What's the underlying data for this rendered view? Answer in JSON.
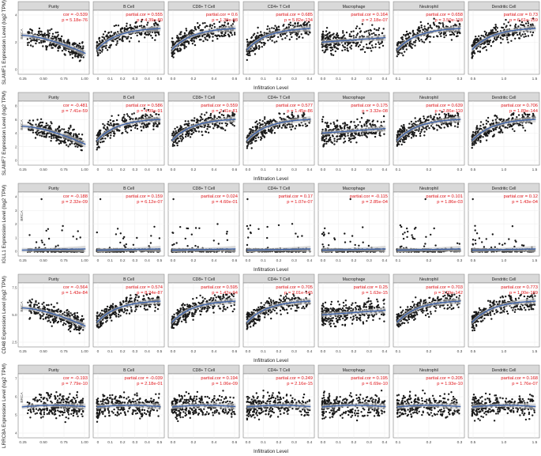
{
  "chart_data": {
    "type": "scatter",
    "x_axis_label": "Infiltration Level",
    "facet_label": "BRCA",
    "cell_types": [
      "Purity",
      "B Cell",
      "CD8+ T Cell",
      "CD4+ T Cell",
      "Macrophage",
      "Neutrophil",
      "Dendritic Cell"
    ],
    "colors": {
      "points": "#1a1a1a",
      "fit": "#3f63a8",
      "band": "#c4c4c4",
      "stat_text": "#e0161b",
      "strip": "#d9d9d9",
      "grid": "#ececec"
    },
    "rows": [
      {
        "gene": "SLAMF1",
        "ylabel": "SLAMF1 Expression Level (log2 TPM)",
        "y_ticks": [
          "0",
          "2",
          "4"
        ],
        "panels": [
          {
            "cell": "Purity",
            "cor_label": "cor = -0.539",
            "p_label": "p = 5.18e-76",
            "x_ticks": [
              "0.25",
              "0.50",
              "0.75",
              "1.00"
            ],
            "trend": "down"
          },
          {
            "cell": "B Cell",
            "cor_label": "partial.cor = 0.555",
            "p_label": "p = 4.39e-80",
            "x_ticks": [
              "0",
              "0.1",
              "0.2",
              "0.3",
              "0.4",
              "0.5"
            ],
            "trend": "up"
          },
          {
            "cell": "CD8+ T Cell",
            "cor_label": "partial.cor = 0.6",
            "p_label": "p = 1.39e-98",
            "x_ticks": [
              "0.0",
              "0.2",
              "0.4",
              "0.6"
            ],
            "trend": "up"
          },
          {
            "cell": "CD4+ T Cell",
            "cor_label": "partial.cor = 0.685",
            "p_label": "p = 5.82e-134",
            "x_ticks": [
              "0.0",
              "0.1",
              "0.2",
              "0.3",
              "0.4"
            ],
            "trend": "up"
          },
          {
            "cell": "Macrophage",
            "cor_label": "partial.cor = 0.164",
            "p_label": "p = 2.18e-07",
            "x_ticks": [
              "0.0",
              "0.1",
              "0.2",
              "0.3",
              "0.4"
            ],
            "trend": "flat-up"
          },
          {
            "cell": "Neutrophil",
            "cor_label": "partial.cor = 0.658",
            "p_label": "p = 3.50e-118",
            "x_ticks": [
              "0.1",
              "0.2",
              "0.3"
            ],
            "trend": "up"
          },
          {
            "cell": "Dendritic Cell",
            "cor_label": "partial.cor = 0.73",
            "p_label": "p = 6.61e-159",
            "x_ticks": [
              "0.5",
              "1.0",
              "1.5"
            ],
            "trend": "up"
          }
        ]
      },
      {
        "gene": "SLAMF7",
        "ylabel": "SLAMF7 Expression Level (log2 TPM)",
        "y_ticks": [
          "0",
          "2",
          "4",
          "6",
          "8"
        ],
        "panels": [
          {
            "cell": "Purity",
            "cor_label": "cor = -0.481",
            "p_label": "p = 7.41e-59",
            "x_ticks": [
              "0.25",
              "0.50",
              "0.75",
              "1.00"
            ],
            "trend": "down"
          },
          {
            "cell": "B Cell",
            "cor_label": "partial.cor = 0.586",
            "p_label": "p = 4.09e-91",
            "x_ticks": [
              "0",
              "0.1",
              "0.2",
              "0.3",
              "0.4",
              "0.5"
            ],
            "trend": "up"
          },
          {
            "cell": "CD8+ T Cell",
            "cor_label": "partial.cor = 0.559",
            "p_label": "p = 2.41e-81",
            "x_ticks": [
              "0.0",
              "0.2",
              "0.4",
              "0.6"
            ],
            "trend": "up"
          },
          {
            "cell": "CD4+ T Cell",
            "cor_label": "partial.cor = 0.577",
            "p_label": "p = 1.45e-86",
            "x_ticks": [
              "0.0",
              "0.1",
              "0.2",
              "0.3",
              "0.4"
            ],
            "trend": "up"
          },
          {
            "cell": "Macrophage",
            "cor_label": "partial.cor = 0.175",
            "p_label": "p = 3.32e-08",
            "x_ticks": [
              "0.0",
              "0.1",
              "0.2",
              "0.3",
              "0.4"
            ],
            "trend": "flat-up"
          },
          {
            "cell": "Neutrophil",
            "cor_label": "partial.cor = 0.639",
            "p_label": "p = 2.86e-110",
            "x_ticks": [
              "0.1",
              "0.2",
              "0.3"
            ],
            "trend": "up"
          },
          {
            "cell": "Dendritic Cell",
            "cor_label": "partial.cor = 0.706",
            "p_label": "p = 1.89e-144",
            "x_ticks": [
              "0.5",
              "1.0",
              "1.5"
            ],
            "trend": "up"
          }
        ]
      },
      {
        "gene": "IGLL1",
        "ylabel": "IGLL1 Expression Level (log2 TPM)",
        "y_ticks": [
          "0",
          "1",
          "2",
          "3",
          "4"
        ],
        "panels": [
          {
            "cell": "Purity",
            "cor_label": "cor = -0.188",
            "p_label": "p = 2.32e-09",
            "x_ticks": [
              "0.25",
              "0.50",
              "0.75",
              "1.00"
            ],
            "trend": "low"
          },
          {
            "cell": "B Cell",
            "cor_label": "partial.cor = 0.159",
            "p_label": "p = 6.12e-07",
            "x_ticks": [
              "0",
              "0.1",
              "0.2",
              "0.3",
              "0.4",
              "0.5"
            ],
            "trend": "low"
          },
          {
            "cell": "CD8+ T Cell",
            "cor_label": "partial.cor = 0.024",
            "p_label": "p = 4.60e-01",
            "x_ticks": [
              "0.0",
              "0.2",
              "0.4",
              "0.6"
            ],
            "trend": "low"
          },
          {
            "cell": "CD4+ T Cell",
            "cor_label": "partial.cor = 0.17",
            "p_label": "p = 1.07e-07",
            "x_ticks": [
              "0.0",
              "0.1",
              "0.2",
              "0.3",
              "0.4"
            ],
            "trend": "low"
          },
          {
            "cell": "Macrophage",
            "cor_label": "partial.cor = -0.115",
            "p_label": "p = 2.85e-04",
            "x_ticks": [
              "0.0",
              "0.1",
              "0.2",
              "0.3",
              "0.4"
            ],
            "trend": "low"
          },
          {
            "cell": "Neutrophil",
            "cor_label": "partial.cor = 0.101",
            "p_label": "p = 1.86e-03",
            "x_ticks": [
              "0.1",
              "0.2",
              "0.3"
            ],
            "trend": "low"
          },
          {
            "cell": "Dendritic Cell",
            "cor_label": "partial.cor = 0.12",
            "p_label": "p = 1.43e-04",
            "x_ticks": [
              "0.5",
              "1.0",
              "1.5"
            ],
            "trend": "low"
          }
        ]
      },
      {
        "gene": "CD48",
        "ylabel": "CD48 Expression Level (log2 TPM)",
        "y_ticks": [
          "2.5",
          "5.0",
          "7.5"
        ],
        "panels": [
          {
            "cell": "Purity",
            "cor_label": "cor = -0.564",
            "p_label": "p = 1.43e-84",
            "x_ticks": [
              "0.25",
              "0.50",
              "0.75",
              "1.00"
            ],
            "trend": "down"
          },
          {
            "cell": "B Cell",
            "cor_label": "partial.cor = 0.574",
            "p_label": "p = 8.24e-87",
            "x_ticks": [
              "0",
              "0.1",
              "0.2",
              "0.3",
              "0.4",
              "0.5"
            ],
            "trend": "up"
          },
          {
            "cell": "CD8+ T Cell",
            "cor_label": "partial.cor = 0.595",
            "p_label": "p = 1.42e-94",
            "x_ticks": [
              "0.0",
              "0.2",
              "0.4",
              "0.6"
            ],
            "trend": "up"
          },
          {
            "cell": "CD4+ T Cell",
            "cor_label": "partial.cor = 0.705",
            "p_label": "p = 2.01e-145",
            "x_ticks": [
              "0.0",
              "0.1",
              "0.2",
              "0.3",
              "0.4"
            ],
            "trend": "up"
          },
          {
            "cell": "Macrophage",
            "cor_label": "partial.cor = 0.25",
            "p_label": "p = 1.63e-15",
            "x_ticks": [
              "0.0",
              "0.1",
              "0.2",
              "0.3",
              "0.4"
            ],
            "trend": "flat-up"
          },
          {
            "cell": "Neutrophil",
            "cor_label": "partial.cor = 0.703",
            "p_label": "p = 2.09e-142",
            "x_ticks": [
              "0.1",
              "0.2",
              "0.3"
            ],
            "trend": "up"
          },
          {
            "cell": "Dendritic Cell",
            "cor_label": "partial.cor = 0.773",
            "p_label": "p = 1.00e-189",
            "x_ticks": [
              "0.5",
              "1.0",
              "1.5"
            ],
            "trend": "up"
          }
        ]
      },
      {
        "gene": "LRRC8A",
        "ylabel": "LRRC8A Expression Level (log2 TPM)",
        "y_ticks": [
          "4",
          "5",
          "6",
          "7"
        ],
        "panels": [
          {
            "cell": "Purity",
            "cor_label": "cor = -0.193",
            "p_label": "p = 7.79e-10",
            "x_ticks": [
              "0.25",
              "0.50",
              "0.75",
              "1.00"
            ],
            "trend": "flat"
          },
          {
            "cell": "B Cell",
            "cor_label": "partial.cor = -0.039",
            "p_label": "p = 2.18e-01",
            "x_ticks": [
              "0",
              "0.1",
              "0.2",
              "0.3",
              "0.4",
              "0.5"
            ],
            "trend": "flat"
          },
          {
            "cell": "CD8+ T Cell",
            "cor_label": "partial.cor = 0.194",
            "p_label": "p = 1.06e-09",
            "x_ticks": [
              "0.0",
              "0.2",
              "0.4",
              "0.6"
            ],
            "trend": "flat"
          },
          {
            "cell": "CD4+ T Cell",
            "cor_label": "partial.cor = 0.249",
            "p_label": "p = 2.16e-15",
            "x_ticks": [
              "0.0",
              "0.1",
              "0.2",
              "0.3",
              "0.4"
            ],
            "trend": "flat"
          },
          {
            "cell": "Macrophage",
            "cor_label": "partial.cor = 0.195",
            "p_label": "p = 6.69e-10",
            "x_ticks": [
              "0.0",
              "0.1",
              "0.2",
              "0.3",
              "0.4"
            ],
            "trend": "flat"
          },
          {
            "cell": "Neutrophil",
            "cor_label": "partial.cor = 0.205",
            "p_label": "p = 1.93e-10",
            "x_ticks": [
              "0.1",
              "0.2",
              "0.3"
            ],
            "trend": "flat"
          },
          {
            "cell": "Dendritic Cell",
            "cor_label": "partial.cor = 0.168",
            "p_label": "p = 1.76e-07",
            "x_ticks": [
              "0.5",
              "1.0",
              "1.5"
            ],
            "trend": "flat"
          }
        ]
      }
    ]
  }
}
